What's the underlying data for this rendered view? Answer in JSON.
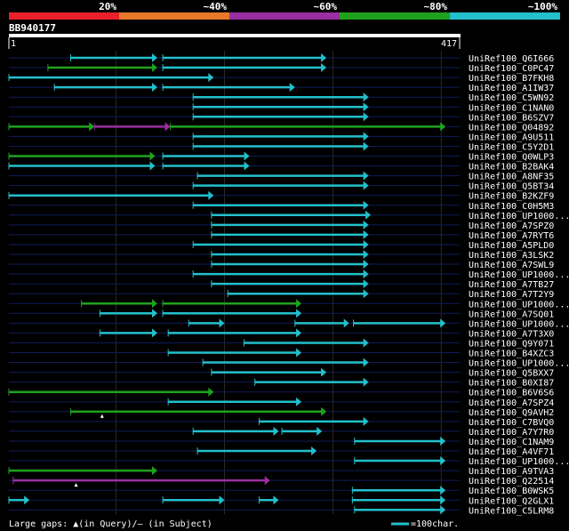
{
  "query": {
    "name": "BB940177",
    "start_label": "1",
    "end_label": "417",
    "length": 417
  },
  "identity_scale": [
    {
      "label": "20%",
      "color": "#e8202c"
    },
    {
      "label": "~40%",
      "color": "#e8782a"
    },
    {
      "label": "~60%",
      "color": "#9b2ea0"
    },
    {
      "label": "~80%",
      "color": "#1ea21e"
    },
    {
      "label": "~100%",
      "color": "#22c0cc"
    }
  ],
  "footer": {
    "gaps_legend": "Large gaps: ▲(in Query)/– (in Subject)",
    "scale_legend": "=100char."
  },
  "chart_data": {
    "type": "alignment-overview",
    "title": "BB940177",
    "x_range": [
      1,
      417
    ],
    "gridlines_at": [
      100,
      200,
      300,
      400
    ],
    "tracks": [
      {
        "name": "UniRef100_Q6I666",
        "segments": [
          {
            "start": 58,
            "end": 138,
            "color": "#22c0cc"
          },
          {
            "start": 143,
            "end": 294,
            "color": "#22c0cc"
          }
        ]
      },
      {
        "name": "UniRef100_C0PC47",
        "segments": [
          {
            "start": 37,
            "end": 138,
            "color": "#1ea21e"
          },
          {
            "start": 143,
            "end": 294,
            "color": "#22c0cc"
          }
        ]
      },
      {
        "name": "UniRef100_B7FKH8",
        "segments": [
          {
            "start": 1,
            "end": 190,
            "color": "#22c0cc"
          }
        ]
      },
      {
        "name": "UniRef100_A1IW37",
        "segments": [
          {
            "start": 43,
            "end": 138,
            "color": "#22c0cc"
          },
          {
            "start": 143,
            "end": 265,
            "color": "#22c0cc"
          }
        ]
      },
      {
        "name": "UniRef100_C5WN92",
        "segments": [
          {
            "start": 171,
            "end": 333,
            "color": "#22c0cc"
          }
        ]
      },
      {
        "name": "UniRef100_C1NAN0",
        "segments": [
          {
            "start": 171,
            "end": 333,
            "color": "#22c0cc"
          }
        ]
      },
      {
        "name": "UniRef100_B6SZV7",
        "segments": [
          {
            "start": 171,
            "end": 333,
            "color": "#22c0cc"
          }
        ]
      },
      {
        "name": "UniRef100_Q04892",
        "segments": [
          {
            "start": 1,
            "end": 80,
            "color": "#1ea21e"
          },
          {
            "start": 80,
            "end": 150,
            "color": "#9b2ea0"
          },
          {
            "start": 150,
            "end": 404,
            "color": "#1ea21e"
          }
        ]
      },
      {
        "name": "UniRef100_A9U511",
        "segments": [
          {
            "start": 171,
            "end": 333,
            "color": "#22c0cc"
          }
        ]
      },
      {
        "name": "UniRef100_C5Y2D1",
        "segments": [
          {
            "start": 171,
            "end": 333,
            "color": "#22c0cc"
          }
        ]
      },
      {
        "name": "UniRef100_Q0WLP3",
        "segments": [
          {
            "start": 1,
            "end": 136,
            "color": "#1ea21e"
          },
          {
            "start": 143,
            "end": 223,
            "color": "#22c0cc"
          }
        ]
      },
      {
        "name": "UniRef100_B2BAK4",
        "segments": [
          {
            "start": 1,
            "end": 136,
            "color": "#22c0cc"
          },
          {
            "start": 143,
            "end": 223,
            "color": "#22c0cc"
          }
        ]
      },
      {
        "name": "UniRef100_A8NF35",
        "segments": [
          {
            "start": 175,
            "end": 333,
            "color": "#22c0cc"
          }
        ]
      },
      {
        "name": "UniRef100_Q5BT34",
        "segments": [
          {
            "start": 171,
            "end": 333,
            "color": "#22c0cc"
          }
        ]
      },
      {
        "name": "UniRef100_B2KZF9",
        "segments": [
          {
            "start": 1,
            "end": 190,
            "color": "#22c0cc"
          }
        ]
      },
      {
        "name": "UniRef100_C0H5M3",
        "segments": [
          {
            "start": 171,
            "end": 333,
            "color": "#22c0cc"
          }
        ]
      },
      {
        "name": "UniRef100_UP1000...",
        "segments": [
          {
            "start": 188,
            "end": 335,
            "color": "#22c0cc"
          }
        ]
      },
      {
        "name": "UniRef100_A7SPZ0",
        "segments": [
          {
            "start": 188,
            "end": 333,
            "color": "#22c0cc"
          }
        ]
      },
      {
        "name": "UniRef100_A7RYT6",
        "segments": [
          {
            "start": 188,
            "end": 333,
            "color": "#22c0cc"
          }
        ]
      },
      {
        "name": "UniRef100_A5PLD0",
        "segments": [
          {
            "start": 171,
            "end": 333,
            "color": "#22c0cc"
          }
        ]
      },
      {
        "name": "UniRef100_A3LSK2",
        "segments": [
          {
            "start": 188,
            "end": 333,
            "color": "#22c0cc"
          }
        ]
      },
      {
        "name": "UniRef100_A7SWL9",
        "segments": [
          {
            "start": 188,
            "end": 333,
            "color": "#22c0cc"
          }
        ]
      },
      {
        "name": "UniRef100_UP1000...",
        "segments": [
          {
            "start": 171,
            "end": 333,
            "color": "#22c0cc"
          }
        ]
      },
      {
        "name": "UniRef100_A7TB27",
        "segments": [
          {
            "start": 188,
            "end": 333,
            "color": "#22c0cc"
          }
        ]
      },
      {
        "name": "UniRef100_A7T2Y9",
        "segments": [
          {
            "start": 203,
            "end": 333,
            "color": "#22c0cc"
          }
        ]
      },
      {
        "name": "UniRef100_UP1000...",
        "segments": [
          {
            "start": 68,
            "end": 138,
            "color": "#1ea21e"
          },
          {
            "start": 143,
            "end": 271,
            "color": "#1ea21e"
          }
        ]
      },
      {
        "name": "UniRef100_A7SQ01",
        "segments": [
          {
            "start": 85,
            "end": 138,
            "color": "#22c0cc"
          },
          {
            "start": 143,
            "end": 271,
            "color": "#22c0cc"
          }
        ]
      },
      {
        "name": "UniRef100_UP1000...",
        "segments": [
          {
            "start": 167,
            "end": 200,
            "color": "#22c0cc"
          },
          {
            "start": 265,
            "end": 315,
            "color": "#22c0cc"
          },
          {
            "start": 319,
            "end": 404,
            "color": "#22c0cc"
          }
        ]
      },
      {
        "name": "UniRef100_A7T3X0",
        "segments": [
          {
            "start": 85,
            "end": 138,
            "color": "#22c0cc"
          },
          {
            "start": 148,
            "end": 271,
            "color": "#22c0cc"
          }
        ]
      },
      {
        "name": "UniRef100_Q9Y071",
        "segments": [
          {
            "start": 218,
            "end": 333,
            "color": "#22c0cc"
          }
        ]
      },
      {
        "name": "UniRef100_B4XZC3",
        "segments": [
          {
            "start": 148,
            "end": 271,
            "color": "#22c0cc"
          }
        ]
      },
      {
        "name": "UniRef100_UP1000...",
        "segments": [
          {
            "start": 180,
            "end": 333,
            "color": "#22c0cc"
          }
        ]
      },
      {
        "name": "UniRef100_Q5BXX7",
        "segments": [
          {
            "start": 188,
            "end": 294,
            "color": "#22c0cc"
          }
        ]
      },
      {
        "name": "UniRef100_B0XI87",
        "segments": [
          {
            "start": 228,
            "end": 333,
            "color": "#22c0cc"
          }
        ]
      },
      {
        "name": "UniRef100_B6V6S6",
        "segments": [
          {
            "start": 1,
            "end": 190,
            "color": "#1ea21e"
          }
        ]
      },
      {
        "name": "UniRef100_A7SPZ4",
        "segments": [
          {
            "start": 148,
            "end": 271,
            "color": "#22c0cc"
          }
        ]
      },
      {
        "name": "UniRef100_Q9AVH2",
        "segments": [
          {
            "start": 58,
            "end": 294,
            "color": "#1ea21e"
          }
        ]
      },
      {
        "name": "UniRef100_C7BVQ0",
        "segments": [
          {
            "start": 232,
            "end": 333,
            "color": "#22c0cc"
          }
        ]
      },
      {
        "name": "UniRef100_A7Y7R0",
        "segments": [
          {
            "start": 171,
            "end": 250,
            "color": "#22c0cc"
          },
          {
            "start": 253,
            "end": 290,
            "color": "#22c0cc"
          }
        ]
      },
      {
        "name": "UniRef100_C1NAM9",
        "segments": [
          {
            "start": 320,
            "end": 404,
            "color": "#22c0cc"
          }
        ]
      },
      {
        "name": "UniRef100_A4VF71",
        "segments": [
          {
            "start": 175,
            "end": 285,
            "color": "#22c0cc"
          }
        ]
      },
      {
        "name": "UniRef100_UP1000...",
        "segments": [
          {
            "start": 320,
            "end": 404,
            "color": "#22c0cc"
          }
        ]
      },
      {
        "name": "UniRef100_A9TVA3",
        "segments": [
          {
            "start": 1,
            "end": 138,
            "color": "#1ea21e"
          }
        ]
      },
      {
        "name": "UniRef100_Q22514",
        "segments": [
          {
            "start": 5,
            "end": 242,
            "color": "#9b2ea0"
          }
        ]
      },
      {
        "name": "UniRef100_B0WSK5",
        "segments": [
          {
            "start": 318,
            "end": 404,
            "color": "#22c0cc"
          }
        ]
      },
      {
        "name": "UniRef100_Q2GLX1",
        "segments": [
          {
            "start": 1,
            "end": 20,
            "color": "#22c0cc"
          },
          {
            "start": 143,
            "end": 200,
            "color": "#22c0cc"
          },
          {
            "start": 232,
            "end": 250,
            "color": "#22c0cc"
          },
          {
            "start": 318,
            "end": 404,
            "color": "#22c0cc"
          }
        ]
      },
      {
        "name": "UniRef100_C5LRM8",
        "segments": [
          {
            "start": 320,
            "end": 404,
            "color": "#22c0cc"
          }
        ]
      }
    ],
    "query_gap_marks": [
      {
        "track": 36,
        "position": 87
      },
      {
        "track": 43,
        "position": 63
      }
    ]
  }
}
